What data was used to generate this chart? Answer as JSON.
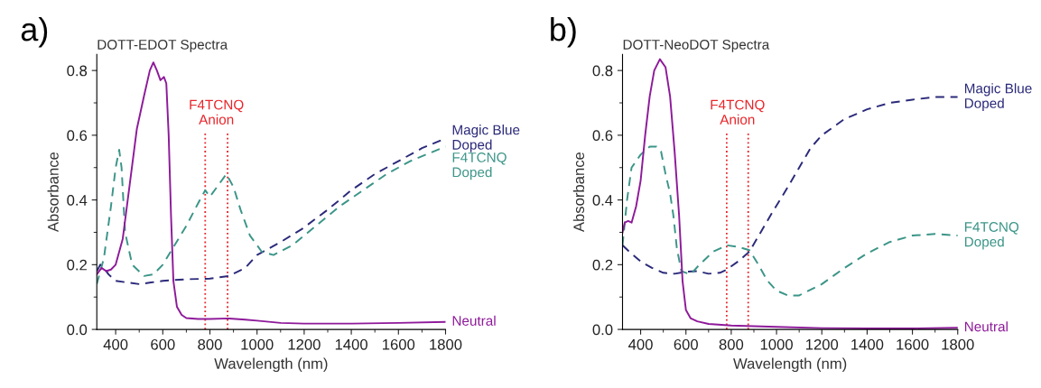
{
  "chart_data": [
    {
      "type": "line",
      "title": "DOTT-EDOT Spectra",
      "xlabel": "Wavelength (nm)",
      "ylabel": "Absorbance",
      "xlim": [
        320,
        1800
      ],
      "ylim": [
        0,
        0.85
      ],
      "xticks": [
        400,
        600,
        800,
        1000,
        1200,
        1400,
        1600,
        1800
      ],
      "yticks": [
        {
          "value": 0,
          "label": "0.0"
        },
        {
          "value": 0.2,
          "label": "0.2"
        },
        {
          "value": 0.4,
          "label": "0.4"
        },
        {
          "value": 0.6,
          "label": "0.6"
        },
        {
          "value": 0.8,
          "label": "0.8"
        }
      ],
      "grid": false,
      "legend": false,
      "ref_lines": [
        {
          "axis": "x",
          "value": 780,
          "color": "#e8252a",
          "line_style": "dotted"
        },
        {
          "axis": "x",
          "value": 875,
          "color": "#e8252a",
          "line_style": "dotted"
        }
      ],
      "annotations": [
        "a)",
        "F4TCNQ\nAnion"
      ],
      "series": [
        {
          "name": "Magic Blue\nDoped",
          "color": "#2b2a7a",
          "line_style": "dashed",
          "x": [
            320,
            335,
            350,
            370,
            400,
            450,
            500,
            550,
            600,
            700,
            800,
            880,
            950,
            1000,
            1100,
            1190,
            1300,
            1400,
            1500,
            1600,
            1700,
            1800
          ],
          "values": [
            0.18,
            0.2,
            0.19,
            0.17,
            0.15,
            0.145,
            0.14,
            0.145,
            0.15,
            0.155,
            0.157,
            0.165,
            0.19,
            0.23,
            0.27,
            0.31,
            0.37,
            0.43,
            0.48,
            0.52,
            0.56,
            0.59
          ]
        },
        {
          "name": "F4TCNQ\nDoped",
          "color": "#3b9588",
          "line_style": "dashed",
          "x": [
            320,
            350,
            380,
            400,
            415,
            425,
            440,
            470,
            520,
            560,
            600,
            650,
            700,
            750,
            780,
            800,
            830,
            870,
            900,
            930,
            970,
            1020,
            1070,
            1150,
            1250,
            1350,
            1450,
            1550,
            1650,
            1800
          ],
          "values": [
            0.14,
            0.22,
            0.38,
            0.5,
            0.555,
            0.5,
            0.3,
            0.2,
            0.165,
            0.17,
            0.2,
            0.26,
            0.32,
            0.39,
            0.43,
            0.41,
            0.44,
            0.48,
            0.44,
            0.37,
            0.29,
            0.24,
            0.23,
            0.26,
            0.32,
            0.38,
            0.43,
            0.48,
            0.52,
            0.565
          ]
        },
        {
          "name": "Neutral",
          "color": "#8e1a9a",
          "line_style": "solid",
          "x": [
            320,
            340,
            360,
            380,
            400,
            430,
            460,
            490,
            520,
            545,
            560,
            575,
            590,
            605,
            615,
            625,
            635,
            645,
            660,
            680,
            700,
            750,
            800,
            880,
            950,
            1000,
            1100,
            1200,
            1400,
            1600,
            1800
          ],
          "values": [
            0.17,
            0.19,
            0.18,
            0.185,
            0.2,
            0.28,
            0.45,
            0.62,
            0.72,
            0.8,
            0.825,
            0.8,
            0.77,
            0.78,
            0.76,
            0.6,
            0.35,
            0.15,
            0.07,
            0.045,
            0.035,
            0.032,
            0.032,
            0.034,
            0.03,
            0.027,
            0.02,
            0.018,
            0.018,
            0.02,
            0.023
          ]
        }
      ]
    },
    {
      "type": "line",
      "title": "DOTT-NeoDOT Spectra",
      "xlabel": "Wavelength (nm)",
      "ylabel": "Absorbance",
      "xlim": [
        320,
        1800
      ],
      "ylim": [
        0,
        0.85
      ],
      "xticks": [
        400,
        600,
        800,
        1000,
        1200,
        1400,
        1600,
        1800
      ],
      "yticks": [
        {
          "value": 0,
          "label": "0.0"
        },
        {
          "value": 0.2,
          "label": "0.2"
        },
        {
          "value": 0.4,
          "label": "0.4"
        },
        {
          "value": 0.6,
          "label": "0.6"
        },
        {
          "value": 0.8,
          "label": "0.8"
        }
      ],
      "grid": false,
      "legend": false,
      "ref_lines": [
        {
          "axis": "x",
          "value": 780,
          "color": "#e8252a",
          "line_style": "dotted"
        },
        {
          "axis": "x",
          "value": 875,
          "color": "#e8252a",
          "line_style": "dotted"
        }
      ],
      "annotations": [
        "b)",
        "F4TCNQ\nAnion"
      ],
      "series": [
        {
          "name": "Magic Blue\nDoped",
          "color": "#2b2a7a",
          "line_style": "dashed",
          "x": [
            320,
            350,
            400,
            450,
            500,
            550,
            600,
            650,
            700,
            750,
            780,
            830,
            880,
            930,
            980,
            1050,
            1100,
            1150,
            1200,
            1300,
            1400,
            1500,
            1600,
            1700,
            1800
          ],
          "values": [
            0.26,
            0.24,
            0.21,
            0.19,
            0.175,
            0.172,
            0.178,
            0.18,
            0.172,
            0.175,
            0.185,
            0.21,
            0.24,
            0.3,
            0.36,
            0.44,
            0.5,
            0.56,
            0.6,
            0.65,
            0.68,
            0.7,
            0.71,
            0.718,
            0.718
          ]
        },
        {
          "name": "F4TCNQ\nDoped",
          "color": "#3b9588",
          "line_style": "dashed",
          "x": [
            320,
            340,
            360,
            400,
            440,
            470,
            490,
            510,
            530,
            545,
            560,
            580,
            620,
            660,
            720,
            780,
            830,
            880,
            920,
            960,
            1000,
            1050,
            1100,
            1200,
            1300,
            1400,
            1500,
            1600,
            1700,
            1800
          ],
          "values": [
            0.26,
            0.4,
            0.5,
            0.54,
            0.565,
            0.565,
            0.55,
            0.48,
            0.42,
            0.35,
            0.25,
            0.18,
            0.17,
            0.2,
            0.24,
            0.26,
            0.255,
            0.245,
            0.2,
            0.15,
            0.12,
            0.105,
            0.105,
            0.14,
            0.19,
            0.235,
            0.27,
            0.29,
            0.295,
            0.29
          ]
        },
        {
          "name": "Neutral",
          "color": "#8e1a9a",
          "line_style": "solid",
          "x": [
            320,
            330,
            345,
            360,
            380,
            400,
            420,
            440,
            460,
            485,
            510,
            530,
            550,
            570,
            585,
            600,
            620,
            650,
            700,
            800,
            900,
            1000,
            1200,
            1400,
            1600,
            1800
          ],
          "values": [
            0.3,
            0.33,
            0.335,
            0.33,
            0.38,
            0.46,
            0.6,
            0.72,
            0.8,
            0.835,
            0.81,
            0.72,
            0.55,
            0.35,
            0.15,
            0.06,
            0.035,
            0.025,
            0.017,
            0.012,
            0.01,
            0.008,
            0.004,
            0.003,
            0.003,
            0.005
          ]
        }
      ]
    }
  ]
}
